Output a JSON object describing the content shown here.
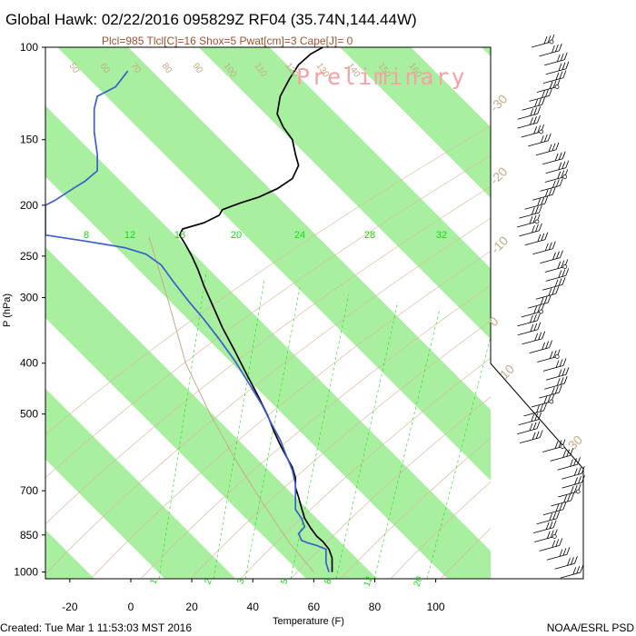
{
  "title": "Global Hawk: 02/22/2016 095829Z RF04 (35.74N,144.44W)",
  "subtitle": "Plcl=985 Tlcl[C]=16 Shox=5 Pwat[cm]=3 Cape[J]= 0",
  "watermark": "Preliminary",
  "footer": {
    "created": "Created: Tue Mar  1 11:53:03 MST 2016",
    "source": "NOAA/ESRL PSD"
  },
  "colors": {
    "temperature": "#000000",
    "dewpoint": "#3a5fcd",
    "isotherm_band": "#a8f0a0",
    "dry_adiabat": "#d8b8a0",
    "mixing_ratio": "#11dd11",
    "parcel": "#c8a888"
  },
  "chart_data": {
    "type": "line",
    "title": "Global Hawk: 02/22/2016 095829Z RF04 (35.74N,144.44W)",
    "xlabel": "Temperature (F)",
    "ylabel": "P (hPa)",
    "x_ticks": [
      -20,
      0,
      20,
      40,
      60,
      80,
      100
    ],
    "y_ticks": [
      100,
      150,
      200,
      250,
      300,
      400,
      500,
      700,
      850,
      1000
    ],
    "y_scale": "log",
    "xlim": [
      -28,
      118
    ],
    "ylim": [
      1030,
      100
    ],
    "mixing_ratio_labels_top": [
      "8",
      "12",
      "16",
      "20",
      "24",
      "28",
      "32"
    ],
    "mixing_ratio_labels_bottom": [
      "1",
      "2",
      "3",
      "5",
      "8",
      "12",
      "20"
    ],
    "isotherm_labels_right": [
      "-30",
      "-20",
      "-10",
      "0",
      "10",
      "30"
    ],
    "series": [
      {
        "name": "Temperature",
        "points": [
          [
            63,
            100
          ],
          [
            59,
            103
          ],
          [
            55,
            108
          ],
          [
            52,
            115
          ],
          [
            49,
            124
          ],
          [
            48,
            134
          ],
          [
            50,
            142
          ],
          [
            53,
            150
          ],
          [
            54,
            160
          ],
          [
            55,
            168
          ],
          [
            53,
            178
          ],
          [
            48,
            186
          ],
          [
            42,
            193
          ],
          [
            36,
            198
          ],
          [
            30,
            204
          ],
          [
            29,
            209
          ],
          [
            24,
            216
          ],
          [
            17,
            222
          ],
          [
            16,
            228
          ],
          [
            18,
            238
          ],
          [
            20,
            250
          ],
          [
            22,
            265
          ],
          [
            24,
            285
          ],
          [
            27,
            312
          ],
          [
            30,
            342
          ],
          [
            34,
            378
          ],
          [
            38,
            420
          ],
          [
            42,
            465
          ],
          [
            45,
            505
          ],
          [
            47,
            540
          ],
          [
            49,
            572
          ],
          [
            51,
            602
          ],
          [
            53,
            632
          ],
          [
            54,
            662
          ],
          [
            54,
            690
          ],
          [
            55,
            720
          ],
          [
            56,
            755
          ],
          [
            57,
            790
          ],
          [
            59,
            825
          ],
          [
            61,
            855
          ],
          [
            63,
            875
          ],
          [
            65,
            905
          ],
          [
            66,
            940
          ],
          [
            66,
            1000
          ]
        ]
      },
      {
        "name": "Dewpoint",
        "points": [
          [
            -1,
            111
          ],
          [
            -5,
            119
          ],
          [
            -11,
            124
          ],
          [
            -12,
            131
          ],
          [
            -12,
            145
          ],
          [
            -11,
            160
          ],
          [
            -11,
            172
          ],
          [
            -15,
            180
          ],
          [
            -19,
            186
          ],
          [
            -25,
            196
          ],
          [
            -28,
            200
          ],
          [
            -28,
            228
          ],
          [
            -15,
            234
          ],
          [
            -2,
            241
          ],
          [
            5,
            248
          ],
          [
            10,
            260
          ],
          [
            14,
            280
          ],
          [
            19,
            305
          ],
          [
            24,
            330
          ],
          [
            29,
            360
          ],
          [
            34,
            395
          ],
          [
            39,
            440
          ],
          [
            43,
            480
          ],
          [
            46,
            520
          ],
          [
            49,
            560
          ],
          [
            51,
            600
          ],
          [
            53,
            640
          ],
          [
            54,
            680
          ],
          [
            54,
            720
          ],
          [
            54,
            760
          ],
          [
            56,
            790
          ],
          [
            57,
            820
          ],
          [
            55,
            845
          ],
          [
            56,
            870
          ],
          [
            58,
            880
          ],
          [
            61,
            890
          ],
          [
            64,
            905
          ],
          [
            64,
            960
          ],
          [
            65,
            1000
          ]
        ]
      }
    ],
    "parcel_path": [
      [
        6,
        230
      ],
      [
        12,
        300
      ],
      [
        18,
        400
      ],
      [
        26,
        500
      ],
      [
        35,
        620
      ],
      [
        44,
        750
      ],
      [
        52,
        880
      ],
      [
        60,
        1000
      ]
    ]
  }
}
